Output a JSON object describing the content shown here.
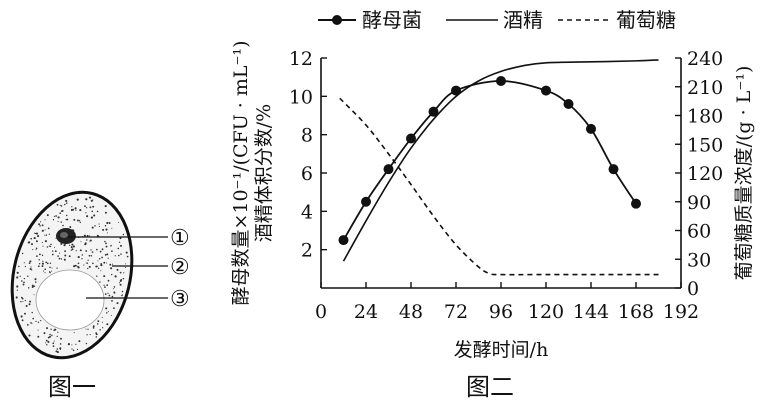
{
  "figures": {
    "fig1_caption": "图一",
    "fig2_caption": "图二",
    "cell_labels": [
      "①",
      "②",
      "③"
    ]
  },
  "legend": {
    "yeast": "酵母菌",
    "ethanol": "酒精",
    "glucose": "葡萄糖"
  },
  "chart_data": {
    "type": "line",
    "xlabel": "发酵时间/h",
    "ylabel_left": "酵母数量×10⁻¹/(CFU · mL⁻¹)",
    "ylabel_left_2": "酒精体积分数/%",
    "ylabel_right": "葡萄糖质量浓度/(g · L⁻¹)",
    "xlim": [
      0,
      192
    ],
    "ylim_left": [
      0,
      12
    ],
    "ylim_right": [
      0,
      240
    ],
    "x_ticks": [
      0,
      24,
      48,
      72,
      96,
      120,
      144,
      168,
      192
    ],
    "y_ticks_left": [
      2,
      4,
      6,
      8,
      10,
      12
    ],
    "y_ticks_right": [
      0,
      30,
      60,
      90,
      120,
      150,
      180,
      210,
      240
    ],
    "series": [
      {
        "name": "酵母菌",
        "axis": "left",
        "style": "line-dots",
        "x": [
          12,
          24,
          36,
          48,
          60,
          72,
          96,
          120,
          132,
          144,
          156,
          168
        ],
        "y": [
          2.5,
          4.5,
          6.2,
          7.8,
          9.2,
          10.3,
          10.8,
          10.3,
          9.6,
          8.3,
          6.2,
          4.4
        ]
      },
      {
        "name": "酒精",
        "axis": "left",
        "style": "solid",
        "x": [
          12,
          24,
          36,
          48,
          60,
          72,
          84,
          96,
          108,
          120,
          144,
          168,
          180
        ],
        "y": [
          1.4,
          3.5,
          5.5,
          7.3,
          8.8,
          10.0,
          10.8,
          11.3,
          11.6,
          11.75,
          11.8,
          11.85,
          11.9
        ]
      },
      {
        "name": "葡萄糖",
        "axis": "right",
        "style": "dashed",
        "x": [
          10,
          24,
          36,
          48,
          60,
          72,
          84,
          90,
          96,
          120,
          150,
          180
        ],
        "y": [
          198,
          170,
          140,
          108,
          75,
          45,
          22,
          15,
          14,
          14,
          14,
          14
        ]
      }
    ]
  }
}
